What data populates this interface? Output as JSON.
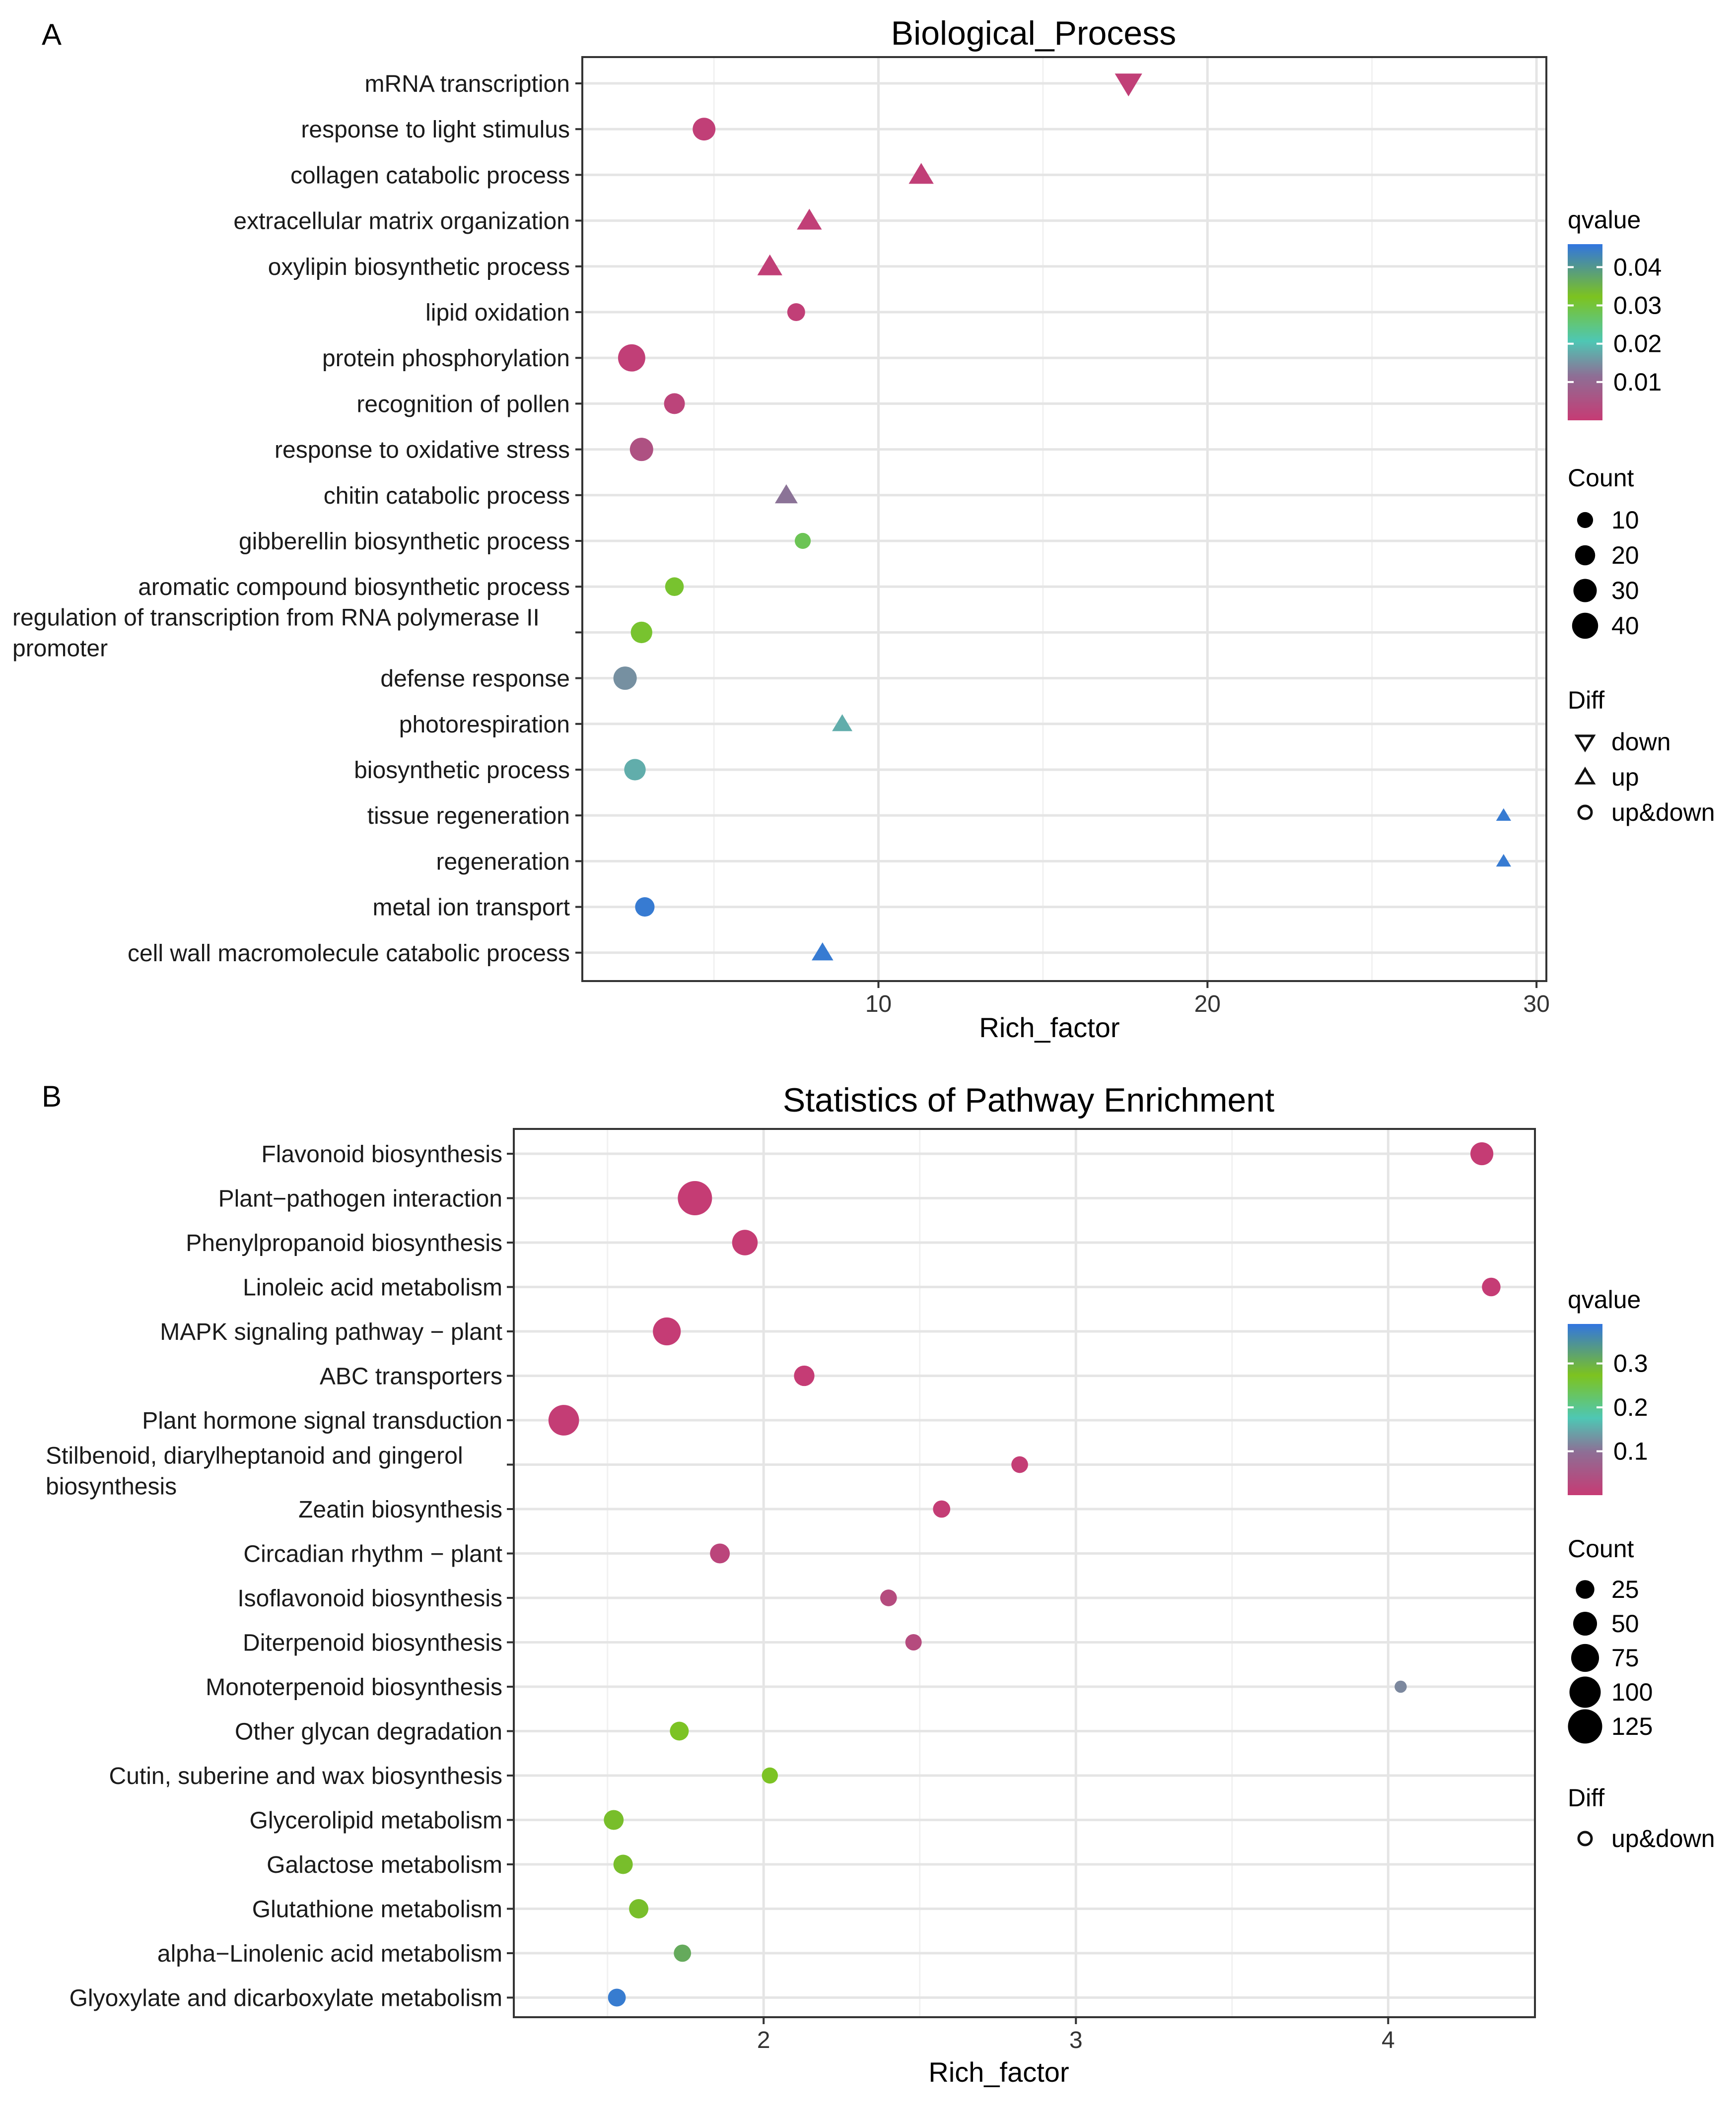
{
  "chart_data": [
    {
      "panel": "A",
      "type": "scatter",
      "title": "Biological_Process",
      "xlabel": "Rich_factor",
      "ylabel": "",
      "xlim": [
        1.0,
        30.3
      ],
      "x_ticks": [
        10,
        20,
        30
      ],
      "categories": [
        "mRNA transcription",
        "response to light stimulus",
        "collagen catabolic process",
        "extracellular matrix organization",
        "oxylipin biosynthetic process",
        "lipid oxidation",
        "protein phosphorylation",
        "recognition of pollen",
        "response to oxidative stress",
        "chitin catabolic process",
        "gibberellin biosynthetic process",
        "aromatic compound biosynthetic process",
        "regulation of transcription from RNA polymerase II promoter",
        "defense response",
        "photorespiration",
        "biosynthetic process",
        "tissue regeneration",
        "regeneration",
        "metal ion transport",
        "cell wall macromolecule catabolic process"
      ],
      "points": [
        {
          "x": 17.6,
          "qvalue": 0.001,
          "count": 22,
          "diff": "down"
        },
        {
          "x": 4.7,
          "qvalue": 0.001,
          "count": 28,
          "diff": "up&down"
        },
        {
          "x": 11.3,
          "qvalue": 0.001,
          "count": 17,
          "diff": "up"
        },
        {
          "x": 7.9,
          "qvalue": 0.001,
          "count": 17,
          "diff": "up"
        },
        {
          "x": 6.7,
          "qvalue": 0.001,
          "count": 17,
          "diff": "up"
        },
        {
          "x": 7.5,
          "qvalue": 0.001,
          "count": 14,
          "diff": "up&down"
        },
        {
          "x": 2.5,
          "qvalue": 0.001,
          "count": 45,
          "diff": "up&down"
        },
        {
          "x": 3.8,
          "qvalue": 0.002,
          "count": 22,
          "diff": "up&down"
        },
        {
          "x": 2.8,
          "qvalue": 0.005,
          "count": 30,
          "diff": "up&down"
        },
        {
          "x": 7.2,
          "qvalue": 0.012,
          "count": 13,
          "diff": "up"
        },
        {
          "x": 7.7,
          "qvalue": 0.028,
          "count": 10,
          "diff": "up&down"
        },
        {
          "x": 3.8,
          "qvalue": 0.031,
          "count": 16,
          "diff": "up&down"
        },
        {
          "x": 2.8,
          "qvalue": 0.031,
          "count": 24,
          "diff": "up&down"
        },
        {
          "x": 2.3,
          "qvalue": 0.015,
          "count": 30,
          "diff": "up&down"
        },
        {
          "x": 8.9,
          "qvalue": 0.018,
          "count": 9,
          "diff": "up"
        },
        {
          "x": 2.6,
          "qvalue": 0.018,
          "count": 24,
          "diff": "up&down"
        },
        {
          "x": 29.0,
          "qvalue": 0.045,
          "count": 3,
          "diff": "up"
        },
        {
          "x": 29.0,
          "qvalue": 0.045,
          "count": 3,
          "diff": "up"
        },
        {
          "x": 2.9,
          "qvalue": 0.045,
          "count": 18,
          "diff": "up&down"
        },
        {
          "x": 8.3,
          "qvalue": 0.045,
          "count": 11,
          "diff": "up"
        }
      ],
      "legend": {
        "color_title": "qvalue",
        "color_range": [
          0.0,
          0.046
        ],
        "color_ticks": [
          "0.04",
          "0.03",
          "0.02",
          "0.01"
        ],
        "color_tick_values": [
          0.04,
          0.03,
          0.02,
          0.01
        ],
        "size_title": "Count",
        "size_labels": [
          "10",
          "20",
          "30",
          "40"
        ],
        "size_values": [
          10,
          20,
          30,
          40
        ],
        "shape_title": "Diff",
        "shape_labels": [
          "down",
          "up",
          "up&down"
        ],
        "shape_keys": [
          "down",
          "up",
          "up&down"
        ]
      }
    },
    {
      "panel": "B",
      "type": "scatter",
      "title": "Statistics of Pathway Enrichment",
      "xlabel": "Rich_factor",
      "ylabel": "",
      "xlim": [
        1.2,
        4.47
      ],
      "x_ticks": [
        2,
        3,
        4
      ],
      "categories": [
        "Flavonoid biosynthesis",
        "Plant−pathogen interaction",
        "Phenylpropanoid biosynthesis",
        "Linoleic acid metabolism",
        "MAPK signaling pathway − plant",
        "ABC transporters",
        "Plant hormone signal transduction",
        "Stilbenoid, diarylheptanoid and gingerol biosynthesis",
        "Zeatin biosynthesis",
        "Circadian rhythm − plant",
        "Isoflavonoid biosynthesis",
        "Diterpenoid biosynthesis",
        "Monoterpenoid biosynthesis",
        "Other glycan degradation",
        "Cutin, suberine and wax biosynthesis",
        "Glycerolipid metabolism",
        "Galactose metabolism",
        "Glutathione metabolism",
        "alpha−Linolenic acid metabolism",
        "Glyoxylate and dicarboxylate metabolism"
      ],
      "points": [
        {
          "x": 4.3,
          "qvalue": 0.001,
          "count": 45,
          "diff": "up&down"
        },
        {
          "x": 1.78,
          "qvalue": 0.001,
          "count": 125,
          "diff": "up&down"
        },
        {
          "x": 1.94,
          "qvalue": 0.001,
          "count": 60,
          "diff": "up&down"
        },
        {
          "x": 4.33,
          "qvalue": 0.002,
          "count": 25,
          "diff": "up&down"
        },
        {
          "x": 1.69,
          "qvalue": 0.002,
          "count": 75,
          "diff": "up&down"
        },
        {
          "x": 2.13,
          "qvalue": 0.002,
          "count": 33,
          "diff": "up&down"
        },
        {
          "x": 1.36,
          "qvalue": 0.003,
          "count": 95,
          "diff": "up&down"
        },
        {
          "x": 2.82,
          "qvalue": 0.004,
          "count": 18,
          "diff": "up&down"
        },
        {
          "x": 2.57,
          "qvalue": 0.004,
          "count": 20,
          "diff": "up&down"
        },
        {
          "x": 1.86,
          "qvalue": 0.02,
          "count": 30,
          "diff": "up&down"
        },
        {
          "x": 2.4,
          "qvalue": 0.03,
          "count": 18,
          "diff": "up&down"
        },
        {
          "x": 2.48,
          "qvalue": 0.03,
          "count": 17,
          "diff": "up&down"
        },
        {
          "x": 4.04,
          "qvalue": 0.12,
          "count": 6,
          "diff": "up&down"
        },
        {
          "x": 1.73,
          "qvalue": 0.27,
          "count": 26,
          "diff": "up&down"
        },
        {
          "x": 2.02,
          "qvalue": 0.27,
          "count": 16,
          "diff": "up&down"
        },
        {
          "x": 1.52,
          "qvalue": 0.28,
          "count": 30,
          "diff": "up&down"
        },
        {
          "x": 1.55,
          "qvalue": 0.28,
          "count": 28,
          "diff": "up&down"
        },
        {
          "x": 1.6,
          "qvalue": 0.28,
          "count": 28,
          "diff": "up&down"
        },
        {
          "x": 1.74,
          "qvalue": 0.31,
          "count": 20,
          "diff": "up&down"
        },
        {
          "x": 1.53,
          "qvalue": 0.38,
          "count": 22,
          "diff": "up&down"
        }
      ],
      "legend": {
        "color_title": "qvalue",
        "color_range": [
          0.0,
          0.39
        ],
        "color_ticks": [
          "0.3",
          "0.2",
          "0.1"
        ],
        "color_tick_values": [
          0.3,
          0.2,
          0.1
        ],
        "size_title": "Count",
        "size_labels": [
          "25",
          "50",
          "75",
          "100",
          "125"
        ],
        "size_values": [
          25,
          50,
          75,
          100,
          125
        ],
        "shape_title": "Diff",
        "shape_labels": [
          "up&down"
        ],
        "shape_keys": [
          "up&down"
        ]
      }
    }
  ],
  "panel_labels": [
    "A",
    "B"
  ],
  "colors": {
    "low": "#c63b74",
    "low_mid": "#8e6e95",
    "mid": "#4ec7b4",
    "mid_high": "#7dc31f",
    "high": "#3175e0",
    "axis": "#333333",
    "grid": "#e5e5e5"
  }
}
